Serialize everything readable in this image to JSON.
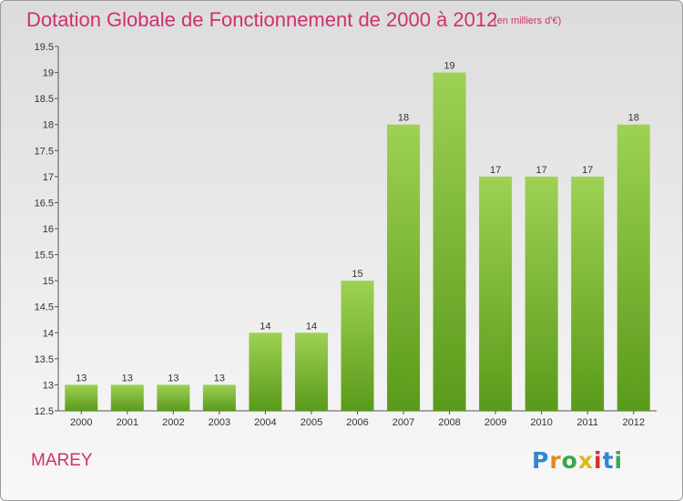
{
  "header": {
    "title": "Dotation Globale de Fonctionnement de 2000 à 2012",
    "unit_note": "(en milliers d'€)"
  },
  "footer": {
    "commune": "MAREY",
    "logo_text": "Proxiti"
  },
  "colors": {
    "accent": "#d0306e",
    "bar_top": "#9ed154",
    "bar_bottom": "#5a9a1a"
  },
  "chart_data": {
    "type": "bar",
    "categories": [
      "2000",
      "2001",
      "2002",
      "2003",
      "2004",
      "2005",
      "2006",
      "2007",
      "2008",
      "2009",
      "2010",
      "2011",
      "2012"
    ],
    "values": [
      13,
      13,
      13,
      13,
      14,
      14,
      15,
      18,
      19,
      17,
      17,
      17,
      18
    ],
    "bar_plot_values": [
      13,
      13,
      13,
      13,
      14,
      14,
      15,
      18,
      19,
      17,
      17,
      17,
      18
    ],
    "ylim": [
      12.5,
      19.5
    ],
    "yticks": [
      "12.5",
      "13",
      "13.5",
      "14",
      "14.5",
      "15",
      "15.5",
      "16",
      "16.5",
      "17",
      "17.5",
      "18",
      "18.5",
      "19",
      "19.5"
    ],
    "grid": false
  }
}
